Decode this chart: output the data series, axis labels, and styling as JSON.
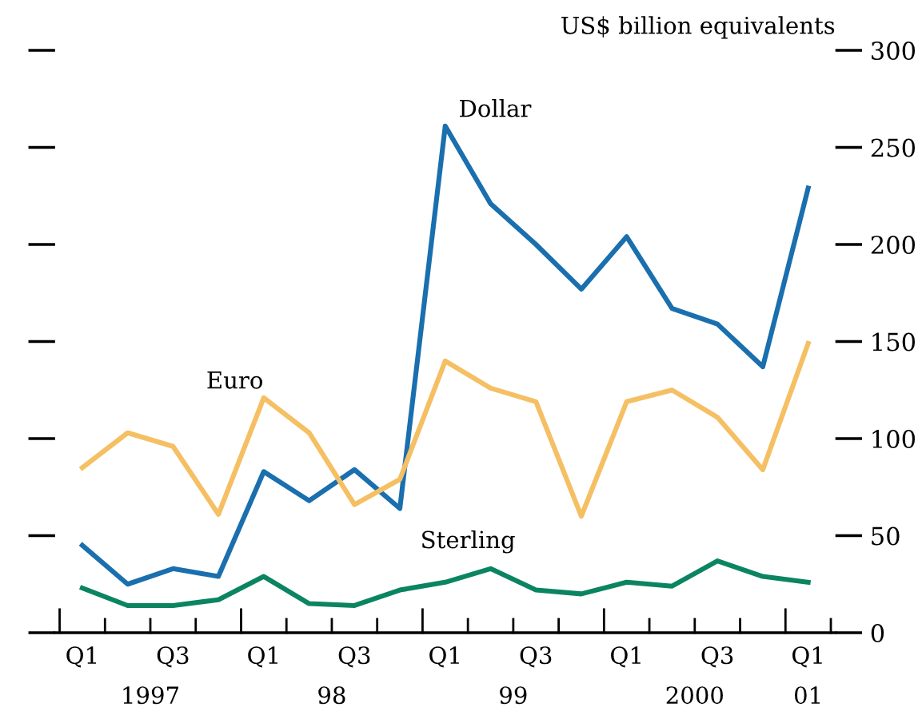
{
  "chart_data": {
    "type": "line",
    "ylabel": "US$ billion equivalents",
    "categories": [
      "Q1",
      null,
      "Q3",
      null,
      "Q1",
      null,
      "Q3",
      null,
      "Q1",
      null,
      "Q3",
      null,
      "Q1",
      null,
      "Q3",
      null,
      "Q1"
    ],
    "series": [
      {
        "name": "Dollar",
        "color": "#1a6fae",
        "values": [
          45,
          25,
          33,
          29,
          83,
          68,
          84,
          64,
          261,
          221,
          200,
          177,
          204,
          167,
          159,
          137,
          229
        ]
      },
      {
        "name": "Euro",
        "color": "#f5bf63",
        "values": [
          85,
          103,
          96,
          61,
          121,
          103,
          66,
          79,
          140,
          126,
          119,
          60,
          119,
          125,
          111,
          84,
          149
        ]
      },
      {
        "name": "Sterling",
        "color": "#0b8462",
        "values": [
          23,
          14,
          14,
          17,
          29,
          15,
          14,
          22,
          26,
          33,
          22,
          20,
          26,
          24,
          37,
          29,
          26
        ]
      }
    ],
    "annotations": [
      "1997",
      "98",
      "99",
      "2000",
      "01"
    ],
    "ylim": [
      0,
      300
    ],
    "yticks": [
      0,
      50,
      100,
      150,
      200,
      250,
      300
    ],
    "grid": false,
    "legend": false,
    "marker": "none",
    "line_style": "solid"
  }
}
